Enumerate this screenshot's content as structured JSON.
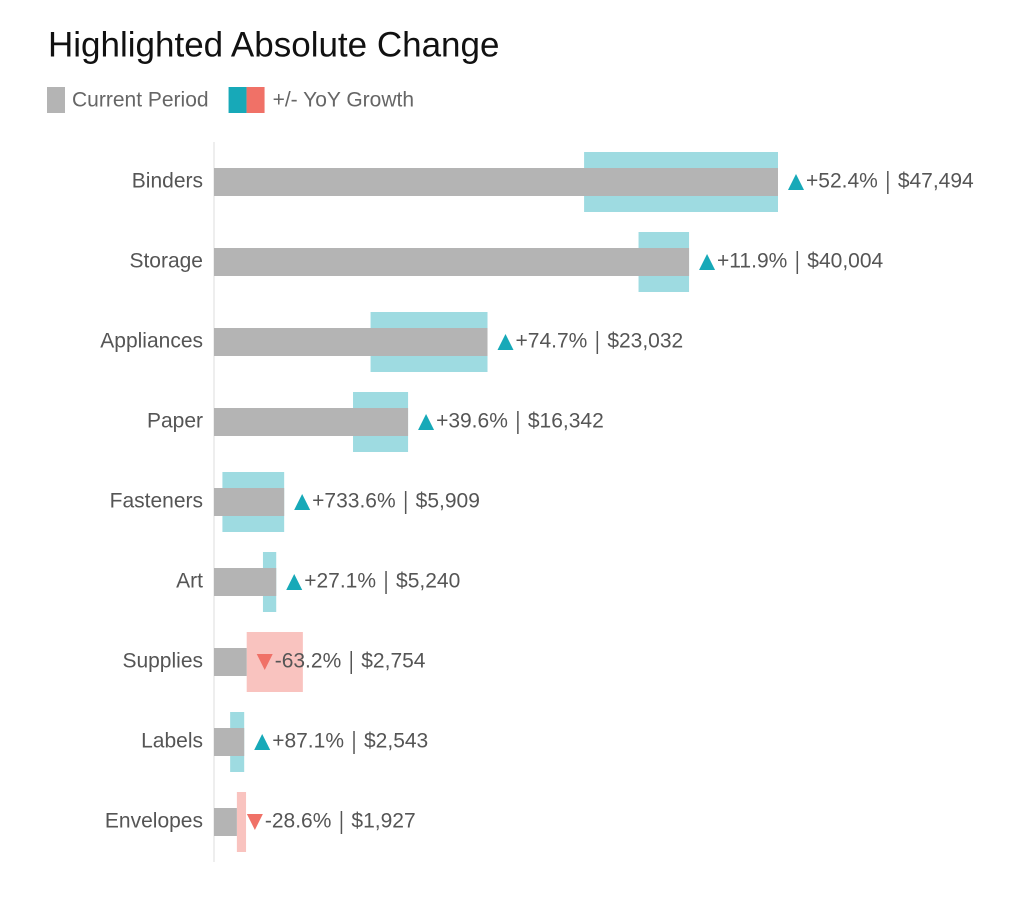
{
  "chart_data": {
    "type": "bar",
    "title": "Highlighted Absolute Change",
    "legend": [
      "Current Period",
      "+/- YoY Growth"
    ],
    "categories": [
      "Binders",
      "Storage",
      "Appliances",
      "Paper",
      "Fasteners",
      "Art",
      "Supplies",
      "Labels",
      "Envelopes"
    ],
    "values": [
      47494,
      40004,
      23032,
      16342,
      5909,
      5240,
      2754,
      2543,
      1927
    ],
    "value_labels": [
      "$47,494",
      "$40,004",
      "$23,032",
      "$16,342",
      "$5,909",
      "$5,240",
      "$2,754",
      "$2,543",
      "$1,927"
    ],
    "growth": [
      52.4,
      11.9,
      74.7,
      39.6,
      733.6,
      27.1,
      -63.2,
      87.1,
      -28.6
    ],
    "growth_labels": [
      "+52.4%",
      "+11.9%",
      "+74.7%",
      "+39.6%",
      "+733.6%",
      "+27.1%",
      "-63.2%",
      "+87.1%",
      "-28.6%"
    ],
    "colors": {
      "current": "#b4b4b4",
      "increase": "#17a9b8",
      "decrease": "#f07167"
    }
  }
}
